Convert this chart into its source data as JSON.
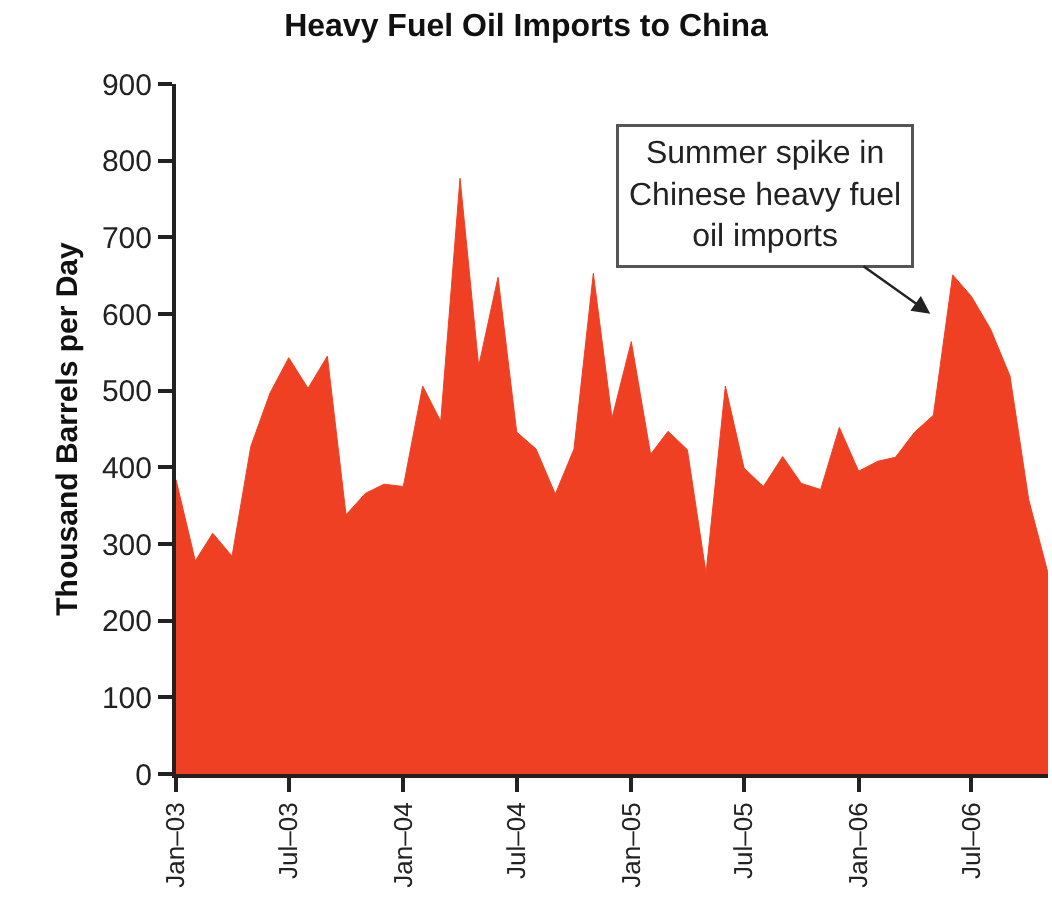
{
  "chart_data": {
    "type": "area",
    "title": "Heavy Fuel Oil Imports to China",
    "ylabel": "Thousand Barrels per Day",
    "x": [
      "2003-01",
      "2003-02",
      "2003-03",
      "2003-04",
      "2003-05",
      "2003-06",
      "2003-07",
      "2003-08",
      "2003-09",
      "2003-10",
      "2003-11",
      "2003-12",
      "2004-01",
      "2004-02",
      "2004-03",
      "2004-04",
      "2004-05",
      "2004-06",
      "2004-07",
      "2004-08",
      "2004-09",
      "2004-10",
      "2004-11",
      "2004-12",
      "2005-01",
      "2005-02",
      "2005-03",
      "2005-04",
      "2005-05",
      "2005-06",
      "2005-07",
      "2005-08",
      "2005-09",
      "2005-10",
      "2005-11",
      "2005-12",
      "2006-01",
      "2006-02",
      "2006-03",
      "2006-04",
      "2006-05",
      "2006-06",
      "2006-07",
      "2006-08",
      "2006-09",
      "2006-10",
      "2006-11"
    ],
    "series": [
      {
        "color": "#ef4023",
        "values": [
          384,
          278,
          314,
          284,
          427,
          497,
          543,
          503,
          545,
          338,
          366,
          378,
          375,
          506,
          460,
          777,
          532,
          648,
          446,
          424,
          365,
          424,
          653,
          464,
          564,
          417,
          447,
          423,
          262,
          506,
          399,
          375,
          414,
          379,
          371,
          452,
          395,
          408,
          413,
          446,
          468,
          651,
          623,
          580,
          519,
          358,
          262
        ]
      }
    ],
    "xlim": [
      "2003-01",
      "2006-11"
    ],
    "xticks": [
      {
        "value": "2003-01",
        "label": "Jan–03"
      },
      {
        "value": "2003-07",
        "label": "Jul–03"
      },
      {
        "value": "2004-01",
        "label": "Jan–04"
      },
      {
        "value": "2004-07",
        "label": "Jul–04"
      },
      {
        "value": "2005-01",
        "label": "Jan–05"
      },
      {
        "value": "2005-07",
        "label": "Jul–05"
      },
      {
        "value": "2006-01",
        "label": "Jan–06"
      },
      {
        "value": "2006-07",
        "label": "Jul–06"
      }
    ],
    "ylim": [
      0,
      900
    ],
    "yticks": [
      0,
      100,
      200,
      300,
      400,
      500,
      600,
      700,
      800,
      900
    ],
    "annotations": [
      "Summer spike in Chinese heavy fuel oil imports"
    ],
    "grid": false
  }
}
